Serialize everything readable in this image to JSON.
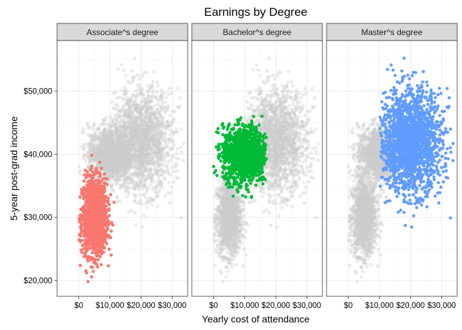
{
  "chart_data": {
    "type": "scatter",
    "title": "Earnings by Degree",
    "xlabel": "Yearly cost of attendance",
    "ylabel": "5-year post-grad income",
    "xlim": [
      -7000,
      35000
    ],
    "ylim": [
      17500,
      58000
    ],
    "x_ticks": [
      0,
      10000,
      20000,
      30000
    ],
    "x_tick_labels": [
      "$0",
      "$10,000",
      "$20,000",
      "$30,000"
    ],
    "y_ticks": [
      20000,
      30000,
      40000,
      50000
    ],
    "y_tick_labels": [
      "$20,000",
      "$30,000",
      "$40,000",
      "$50,000"
    ],
    "grid": true,
    "background_color": "#cccccc",
    "highlight_colors": [
      "#F8766D",
      "#00BA38",
      "#619CFF"
    ],
    "panels": [
      {
        "label": "Associate^s degree",
        "highlight_index": 0
      },
      {
        "label": "Bachelor^s degree",
        "highlight_index": 1
      },
      {
        "label": "Master^s degree",
        "highlight_index": 2
      }
    ],
    "groups": [
      {
        "name": "Associate^s degree",
        "x_mean": 5000,
        "x_sd": 2000,
        "y_mean": 30000,
        "y_sd": 3000,
        "x_range": [
          0,
          13000
        ],
        "y_range": [
          19000,
          40000
        ],
        "n": 1400
      },
      {
        "name": "Bachelor^s degree",
        "x_mean": 10000,
        "x_sd": 3500,
        "y_mean": 40000,
        "y_sd": 2200,
        "x_range": [
          0,
          17000
        ],
        "y_range": [
          32000,
          47000
        ],
        "n": 1400
      },
      {
        "name": "Master^s degree",
        "x_mean": 20000,
        "x_sd": 5000,
        "y_mean": 42000,
        "y_sd": 4000,
        "x_range": [
          10000,
          34000
        ],
        "y_range": [
          26000,
          57000
        ],
        "n": 1800
      }
    ]
  }
}
